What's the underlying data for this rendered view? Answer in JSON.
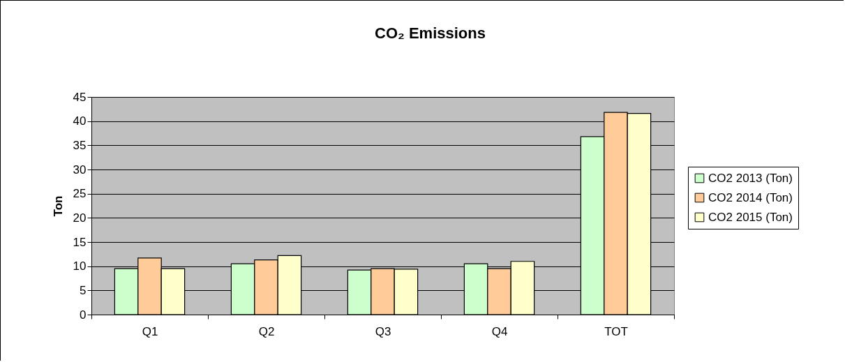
{
  "chart_data": {
    "type": "bar",
    "title": "CO₂ Emissions",
    "ylabel": "Ton",
    "categories": [
      "Q1",
      "Q2",
      "Q3",
      "Q4",
      "TOT"
    ],
    "series": [
      {
        "name": "CO2 2013 (Ton)",
        "color": "#ccffcc",
        "values": [
          9.5,
          10.5,
          9.2,
          10.5,
          36.8
        ]
      },
      {
        "name": "CO2 2014 (Ton)",
        "color": "#ffcc99",
        "values": [
          11.7,
          11.3,
          9.5,
          9.5,
          41.8
        ]
      },
      {
        "name": "CO2 2015 (Ton)",
        "color": "#ffffcc",
        "values": [
          9.5,
          12.2,
          9.4,
          11.0,
          41.6
        ]
      }
    ],
    "ylim": [
      0,
      45
    ],
    "yticks": [
      0,
      5,
      10,
      15,
      20,
      25,
      30,
      35,
      40,
      45
    ],
    "grid": "y",
    "legend": "right"
  }
}
